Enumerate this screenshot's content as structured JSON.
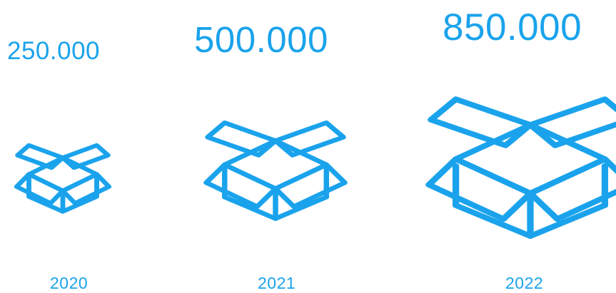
{
  "accent_color": "#1aa3ec",
  "columns": [
    {
      "value": "250.000",
      "year": "2020",
      "icon": "open-box-icon"
    },
    {
      "value": "500.000",
      "year": "2021",
      "icon": "open-box-icon"
    },
    {
      "value": "850.000",
      "year": "2022",
      "icon": "open-box-icon"
    }
  ]
}
